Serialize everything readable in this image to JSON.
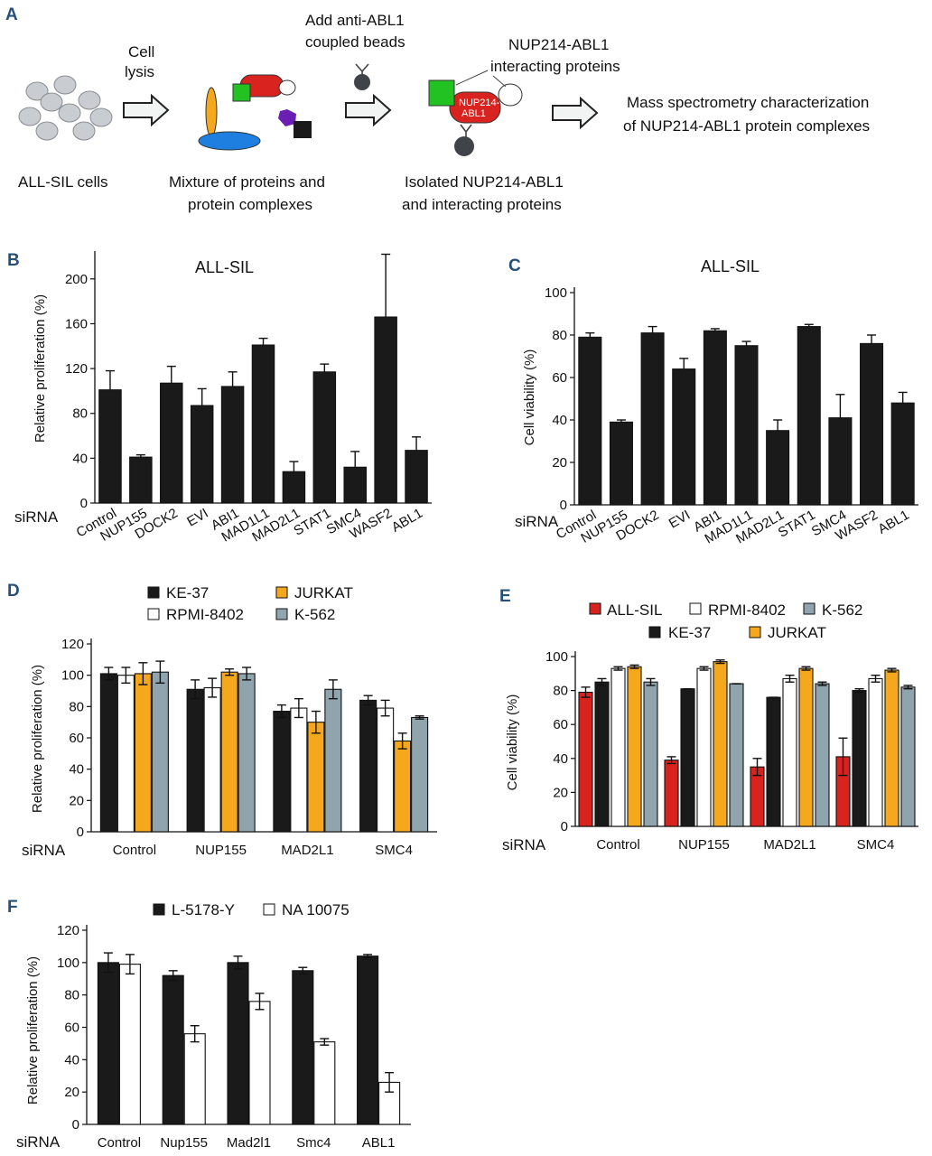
{
  "panel_a": {
    "letter": "A",
    "step1": {
      "label": "ALL-SIL cells"
    },
    "arrow1": {
      "line1": "Cell",
      "line2": "lysis"
    },
    "step2": {
      "line1": "Mixture of proteins and",
      "line2": "protein complexes"
    },
    "beads": {
      "line1": "Add anti-ABL1",
      "line2": "coupled beads"
    },
    "step3": {
      "line1": "Isolated NUP214-ABL1",
      "line2": "and interacting proteins"
    },
    "interacting": {
      "line1": "NUP214-ABL1",
      "line2": "interacting proteins"
    },
    "fusion": {
      "line1": "NUP214-",
      "line2": "ABL1"
    },
    "step4": {
      "line1": "Mass spectrometry characterization",
      "line2": "of NUP214-ABL1 protein complexes"
    }
  },
  "colors": {
    "black": "#1a1a1a",
    "white": "#ffffff",
    "orange": "#f5a81c",
    "gray": "#8fa4ac",
    "red": "#d8231f",
    "green": "#22c222",
    "purple": "#6a1eb4",
    "blue": "#1e7fe0",
    "cell": "#c9ccd0",
    "panel": "#26507a"
  },
  "chart_data": [
    {
      "id": "B",
      "type": "bar",
      "letter": "B",
      "title": "ALL-SIL",
      "ylabel": "Relative proliferation (%)",
      "xlabel_prefix": "siRNA",
      "ylim": [
        0,
        220
      ],
      "yticks": [
        0,
        40,
        80,
        120,
        160,
        200
      ],
      "categories": [
        "Control",
        "NUP155",
        "DOCK2",
        "EVI",
        "ABI1",
        "MAD1L1",
        "MAD2L1",
        "STAT1",
        "SMC4",
        "WASF2",
        "ABL1"
      ],
      "series": [
        {
          "name": "ALL-SIL",
          "color": "#1a1a1a",
          "values": [
            101,
            41,
            107,
            87,
            104,
            141,
            28,
            117,
            32,
            166,
            47
          ],
          "errors": [
            17,
            2,
            15,
            15,
            13,
            6,
            9,
            7,
            14,
            56,
            12
          ]
        }
      ]
    },
    {
      "id": "C",
      "type": "bar",
      "letter": "C",
      "title": "ALL-SIL",
      "ylabel": "Cell viability (%)",
      "xlabel_prefix": "siRNA",
      "ylim": [
        0,
        100
      ],
      "yticks": [
        0,
        20,
        40,
        60,
        80,
        100
      ],
      "categories": [
        "Control",
        "NUP155",
        "DOCK2",
        "EVI",
        "ABI1",
        "MAD1L1",
        "MAD2L1",
        "STAT1",
        "SMC4",
        "WASF2",
        "ABL1"
      ],
      "series": [
        {
          "name": "ALL-SIL",
          "color": "#1a1a1a",
          "values": [
            79,
            39,
            81,
            64,
            82,
            75,
            35,
            84,
            41,
            76,
            48
          ],
          "errors": [
            2,
            1,
            3,
            5,
            1,
            2,
            5,
            1,
            11,
            4,
            5
          ]
        }
      ]
    },
    {
      "id": "D",
      "type": "bar",
      "letter": "D",
      "ylabel": "Relative proliferation (%)",
      "xlabel_prefix": "siRNA",
      "ylim": [
        0,
        120
      ],
      "yticks": [
        0,
        20,
        40,
        60,
        80,
        100,
        120
      ],
      "categories": [
        "Control",
        "NUP155",
        "MAD2L1",
        "SMC4"
      ],
      "series": [
        {
          "name": "KE-37",
          "color": "#1a1a1a",
          "values": [
            101,
            91,
            77,
            84
          ],
          "errors": [
            4,
            6,
            4,
            3
          ]
        },
        {
          "name": "RPMI-8402",
          "color": "#ffffff",
          "values": [
            100,
            92,
            79,
            79
          ],
          "errors": [
            5,
            6,
            6,
            5
          ]
        },
        {
          "name": "JURKAT",
          "color": "#f5a81c",
          "values": [
            101,
            102,
            70,
            58
          ],
          "errors": [
            7,
            2,
            7,
            5
          ]
        },
        {
          "name": "K-562",
          "color": "#8fa4ac",
          "values": [
            102,
            101,
            91,
            73
          ],
          "errors": [
            7,
            4,
            6,
            1
          ]
        }
      ]
    },
    {
      "id": "E",
      "type": "bar",
      "letter": "E",
      "ylabel": "Cell viability (%)",
      "xlabel_prefix": "siRNA",
      "ylim": [
        0,
        100
      ],
      "yticks": [
        0,
        20,
        40,
        60,
        80,
        100
      ],
      "categories": [
        "Control",
        "NUP155",
        "MAD2L1",
        "SMC4"
      ],
      "series": [
        {
          "name": "ALL-SIL",
          "color": "#d8231f",
          "values": [
            79,
            39,
            35,
            41
          ],
          "errors": [
            3,
            2,
            5,
            11
          ]
        },
        {
          "name": "KE-37",
          "color": "#1a1a1a",
          "values": [
            85,
            81,
            76,
            80
          ],
          "errors": [
            2,
            0,
            0,
            1
          ]
        },
        {
          "name": "RPMI-8402",
          "color": "#ffffff",
          "values": [
            93,
            93,
            87,
            87
          ],
          "errors": [
            1,
            1,
            2,
            2
          ]
        },
        {
          "name": "JURKAT",
          "color": "#f5a81c",
          "values": [
            94,
            97,
            93,
            92
          ],
          "errors": [
            1,
            1,
            1,
            1
          ]
        },
        {
          "name": "K-562",
          "color": "#8fa4ac",
          "values": [
            85,
            84,
            84,
            82
          ],
          "errors": [
            2,
            0,
            1,
            1
          ]
        }
      ]
    },
    {
      "id": "F",
      "type": "bar",
      "letter": "F",
      "ylabel": "Relative proliferation (%)",
      "xlabel_prefix": "siRNA",
      "ylim": [
        0,
        120
      ],
      "yticks": [
        0,
        20,
        40,
        60,
        80,
        100,
        120
      ],
      "categories": [
        "Control",
        "Nup155",
        "Mad2l1",
        "Smc4",
        "ABL1"
      ],
      "series": [
        {
          "name": "L-5178-Y",
          "color": "#1a1a1a",
          "values": [
            100,
            92,
            100,
            95,
            104
          ],
          "errors": [
            6,
            3,
            4,
            2,
            1
          ]
        },
        {
          "name": "NA 10075",
          "color": "#ffffff",
          "values": [
            99,
            56,
            76,
            51,
            26
          ],
          "errors": [
            6,
            5,
            5,
            2,
            6
          ]
        }
      ]
    }
  ]
}
